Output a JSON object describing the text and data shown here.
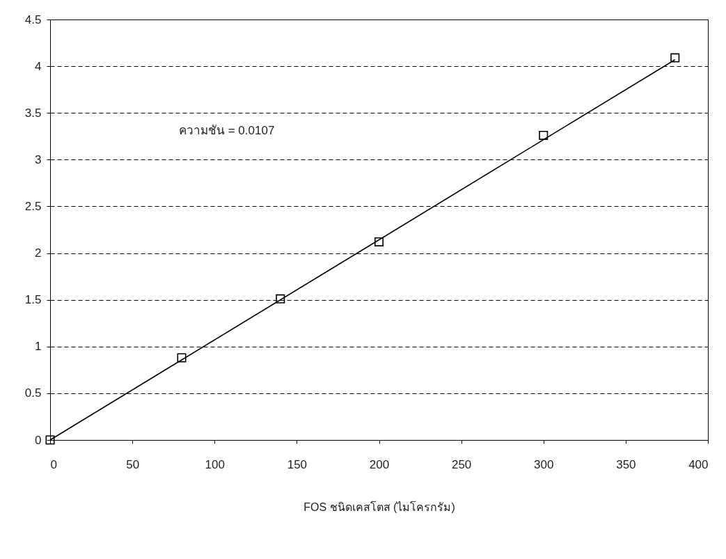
{
  "chart_data": {
    "type": "scatter",
    "xlabel": "FOS ชนิดเคสโตส  (ไมโครกรัม)",
    "annotations": [
      "ความชัน = 0.0107"
    ],
    "x": [
      0,
      80,
      140,
      200,
      300,
      380
    ],
    "series": [
      {
        "color": "#000000",
        "marker": "square",
        "values": [
          0,
          0.88,
          1.51,
          2.12,
          3.26,
          4.09
        ]
      },
      {
        "type": "line",
        "color": "#000000",
        "marker": "none",
        "x": [
          0,
          380
        ],
        "values": [
          0,
          4.07
        ]
      }
    ],
    "xlim": [
      0,
      400
    ],
    "xticks": [
      0,
      50,
      100,
      150,
      200,
      250,
      300,
      350,
      400
    ],
    "ylim": [
      0,
      4.5
    ],
    "yticks": [
      0,
      0.5,
      1,
      1.5,
      2,
      2.5,
      3,
      3.5,
      4,
      4.5
    ],
    "grid": "y",
    "line_style": "solid"
  }
}
